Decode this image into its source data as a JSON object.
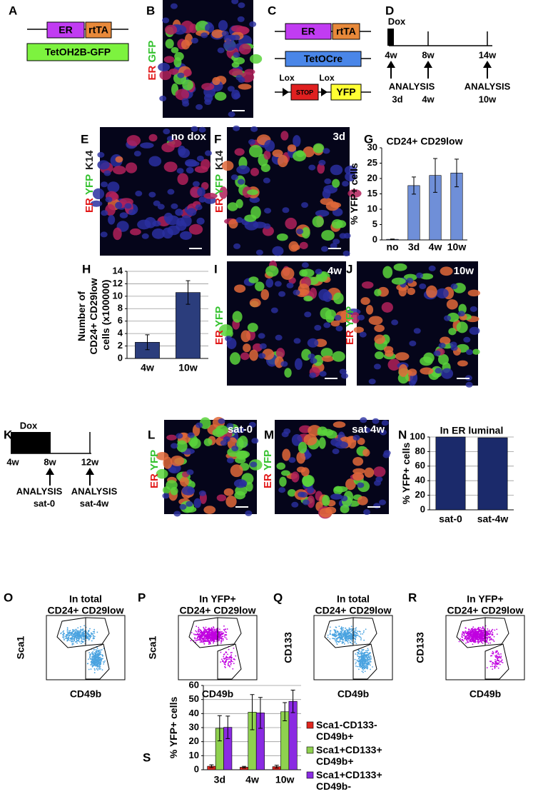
{
  "panel_labels": [
    "A",
    "B",
    "C",
    "D",
    "E",
    "F",
    "G",
    "H",
    "I",
    "J",
    "K",
    "L",
    "M",
    "N",
    "O",
    "P",
    "Q",
    "R",
    "S"
  ],
  "panel_a": {
    "boxes": [
      "ER",
      "rtTA",
      "TetOH2B-GFP"
    ]
  },
  "panel_b": {
    "stain": [
      "ER",
      "GFP"
    ]
  },
  "panel_c": {
    "boxes": [
      "ER",
      "rtTA",
      "TetOCre",
      "STOP",
      "YFP"
    ],
    "lox": [
      "Lox",
      "Lox"
    ]
  },
  "panel_d": {
    "dox": "Dox",
    "times": [
      "4w",
      "8w",
      "14w"
    ],
    "analysis": [
      "ANALYSIS",
      "ANALYSIS"
    ],
    "points": [
      "3d",
      "4w",
      "10w"
    ]
  },
  "panel_e": {
    "condition": "no dox",
    "stain": [
      "ER",
      "YFP",
      "K14"
    ]
  },
  "panel_f": {
    "condition": "3d",
    "stain": [
      "ER",
      "YFP",
      "K14"
    ]
  },
  "panel_i": {
    "condition": "4w",
    "stain": [
      "ER",
      "YFP"
    ]
  },
  "panel_j": {
    "condition": "10w",
    "stain": [
      "ER",
      "YFP"
    ]
  },
  "panel_k": {
    "dox": "Dox",
    "times": [
      "4w",
      "8w",
      "12w"
    ],
    "analysis": [
      "ANALYSIS",
      "ANALYSIS"
    ],
    "points": [
      "sat-0",
      "sat-4w"
    ]
  },
  "panel_l": {
    "condition": "sat-0",
    "stain": [
      "ER",
      "YFP"
    ]
  },
  "panel_m": {
    "condition": "sat 4w",
    "stain": [
      "ER",
      "YFP"
    ]
  },
  "flow": [
    {
      "title": "In total",
      "subtitle": "CD24+ CD29low",
      "ylabel": "Sca1",
      "xlabel": "CD49b"
    },
    {
      "title": "In YFP+",
      "subtitle": "CD24+ CD29low",
      "ylabel": "Sca1",
      "xlabel": "CD49b"
    },
    {
      "title": "In total",
      "subtitle": "CD24+ CD29low",
      "ylabel": "CD133",
      "xlabel": "CD49b"
    },
    {
      "title": "In YFP+",
      "subtitle": "CD24+ CD29low",
      "ylabel": "CD133",
      "xlabel": "CD49b"
    }
  ],
  "chart_data": [
    {
      "type": "bar",
      "title": "CD24+ CD29low",
      "ylabel": "% YFP+ cells",
      "categories": [
        "no",
        "3d",
        "4w",
        "10w"
      ],
      "values": [
        0.2,
        17.7,
        21,
        21.8
      ],
      "errors": [
        0.1,
        2.8,
        5.5,
        4.5
      ],
      "color": "#6f8fd8",
      "ylim": [
        0,
        30
      ],
      "yticks": [
        0,
        5,
        10,
        15,
        20,
        25,
        30
      ],
      "grid": false
    },
    {
      "type": "bar",
      "ylabel": "Number of CD24+ CD29low cells (x100000)",
      "categories": [
        "4w",
        "10w"
      ],
      "values": [
        2.6,
        10.6
      ],
      "errors": [
        1.2,
        1.9
      ],
      "color": "#2b3d7c",
      "ylim": [
        0,
        14
      ],
      "yticks": [
        0,
        2,
        4,
        6,
        8,
        10,
        12,
        14
      ],
      "grid": true
    },
    {
      "type": "bar",
      "title": "In ER luminal",
      "ylabel": "% YFP+ cells",
      "categories": [
        "sat-0",
        "sat-4w"
      ],
      "values": [
        100,
        99
      ],
      "color": "#1b2a6b",
      "ylim": [
        0,
        100
      ],
      "yticks": [
        0,
        20,
        40,
        60,
        80,
        100
      ],
      "grid": true
    },
    {
      "type": "bar",
      "ylabel": "% YFP+ cells",
      "categories": [
        "3d",
        "4w",
        "10w"
      ],
      "series": [
        {
          "name": "Sca1-CD133- CD49b+",
          "color": "#e0261f",
          "values": [
            2.5,
            1.8,
            2.2
          ],
          "errors": [
            1,
            0.6,
            1
          ]
        },
        {
          "name": "Sca1+CD133+ CD49b+",
          "color": "#8fd14f",
          "values": [
            29.5,
            41,
            41.3
          ],
          "errors": [
            9,
            12.5,
            6.5
          ]
        },
        {
          "name": "Sca1+CD133+ CD49b-",
          "color": "#8a2be2",
          "values": [
            30.2,
            40.5,
            48.7
          ],
          "errors": [
            8,
            11,
            8
          ]
        }
      ],
      "ylim": [
        0,
        60
      ],
      "yticks": [
        0,
        10,
        20,
        30,
        40,
        50,
        60
      ],
      "grid": true
    }
  ]
}
